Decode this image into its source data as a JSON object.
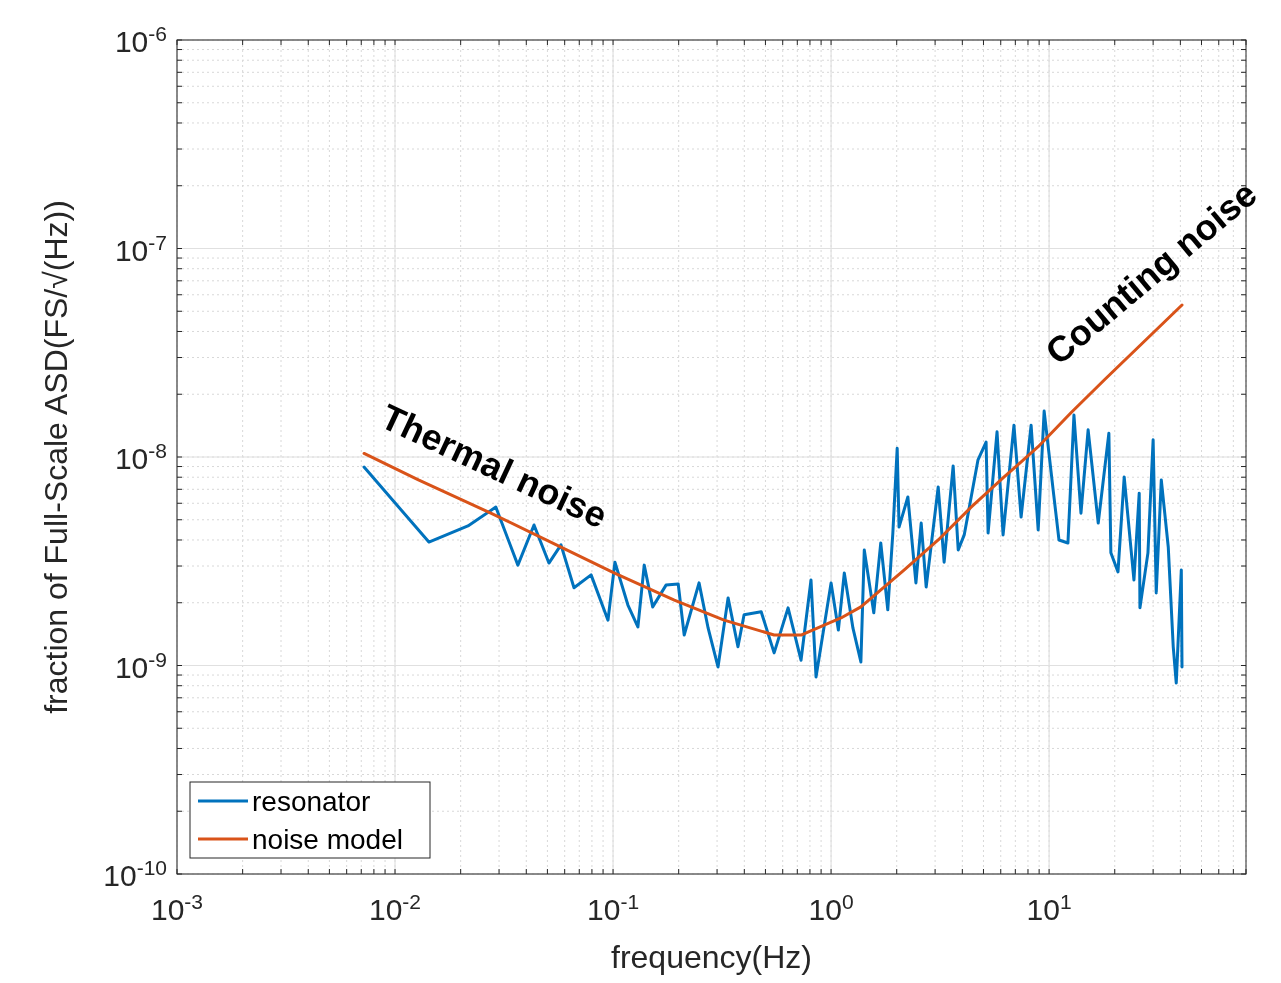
{
  "chart_data": {
    "type": "line",
    "xlabel": "frequency(Hz)",
    "ylabel": "fraction of Full-Scale ASD(FS/√(Hz))",
    "log": "xy",
    "grid": true,
    "legend": "bottom left",
    "line_style": "solid",
    "marker": "none",
    "xlim": [
      0.001,
      80
    ],
    "ylim": [
      1e-10,
      1e-06
    ],
    "xticks": [
      {
        "value": 0.001,
        "label": "10$^{-3}$"
      },
      {
        "value": 0.01,
        "label": "10$^{-2}$"
      },
      {
        "value": 0.1,
        "label": "10$^{-1}$"
      },
      {
        "value": 1,
        "label": "10$^{0}$"
      },
      {
        "value": 10,
        "label": "10$^{1}$"
      }
    ],
    "yticks": [
      {
        "value": 1e-10,
        "label": "10$^{-10}$"
      },
      {
        "value": 1e-09,
        "label": "10$^{-9}$"
      },
      {
        "value": 1e-08,
        "label": "10$^{-8}$"
      },
      {
        "value": 1e-07,
        "label": "10$^{-7}$"
      },
      {
        "value": 1e-06,
        "label": "10$^{-6}$"
      }
    ],
    "series": [
      {
        "name": "resonator",
        "color": "#0072bd",
        "x": [
          0.00721,
          0.0143,
          0.0216,
          0.029,
          0.0366,
          0.0434,
          0.0508,
          0.0577,
          0.0662,
          0.0793,
          0.0948,
          0.102,
          0.117,
          0.13,
          0.139,
          0.152,
          0.175,
          0.199,
          0.212,
          0.248,
          0.273,
          0.303,
          0.337,
          0.374,
          0.399,
          0.478,
          0.548,
          0.635,
          0.728,
          0.809,
          0.853,
          1.0,
          1.08,
          1.15,
          1.26,
          1.37,
          1.42,
          1.57,
          1.69,
          1.82,
          1.92,
          2.01,
          2.05,
          2.25,
          2.45,
          2.59,
          2.73,
          3.1,
          3.3,
          3.63,
          3.83,
          4.08,
          4.72,
          5.14,
          5.25,
          5.77,
          6.15,
          6.9,
          7.44,
          8.27,
          8.91,
          9.49,
          10.5,
          11.1,
          12.2,
          13.0,
          14.0,
          15.1,
          16.8,
          18.8,
          19.2,
          20.7,
          22.1,
          24.5,
          25.9,
          26.1,
          28.4,
          30.0,
          31.0,
          32.7,
          35.2,
          37.1,
          38.3,
          40.4,
          40.7
        ],
        "values": [
          8.95e-09,
          3.91e-09,
          4.67e-09,
          5.75e-09,
          3.03e-09,
          4.72e-09,
          3.1e-09,
          3.79e-09,
          2.36e-09,
          2.72e-09,
          1.65e-09,
          3.13e-09,
          1.95e-09,
          1.53e-09,
          3.03e-09,
          1.91e-09,
          2.43e-09,
          2.46e-09,
          1.4e-09,
          2.49e-09,
          1.51e-09,
          9.84e-10,
          2.11e-09,
          1.23e-09,
          1.75e-09,
          1.81e-09,
          1.15e-09,
          1.89e-09,
          1.06e-09,
          2.57e-09,
          8.81e-10,
          2.49e-09,
          1.48e-09,
          2.78e-09,
          1.51e-09,
          1.04e-09,
          3.58e-09,
          1.79e-09,
          3.87e-09,
          1.85e-09,
          4.32e-09,
          1.1e-08,
          4.61e-09,
          6.43e-09,
          2.49e-09,
          4.82e-09,
          2.38e-09,
          7.18e-09,
          3.13e-09,
          9.06e-09,
          3.58e-09,
          4.23e-09,
          9.69e-09,
          1.18e-08,
          4.32e-09,
          1.32e-08,
          4.23e-09,
          1.42e-08,
          5.15e-09,
          1.42e-08,
          4.47e-09,
          1.66e-08,
          6.58e-09,
          4e-09,
          3.87e-09,
          1.59e-08,
          5.38e-09,
          1.35e-08,
          4.82e-09,
          1.3e-08,
          3.47e-09,
          2.81e-09,
          8.02e-09,
          2.57e-09,
          6.71e-09,
          1.89e-09,
          3.47e-09,
          1.21e-08,
          2.23e-09,
          7.76e-09,
          3.7e-09,
          1.23e-09,
          8.24e-10,
          2.87e-09,
          9.84e-10
        ]
      },
      {
        "name": "noise model",
        "color": "#d95319",
        "x": [
          0.00721,
          0.0128,
          0.0275,
          0.0577,
          0.101,
          0.191,
          0.323,
          0.548,
          0.728,
          1.11,
          1.37,
          2.16,
          3.1,
          4.39,
          6.22,
          8.91,
          12.6,
          17.9,
          40.7
        ],
        "values": [
          1.04e-08,
          7.76e-09,
          5.38e-09,
          3.7e-09,
          2.78e-09,
          2.06e-09,
          1.65e-09,
          1.4e-09,
          1.4e-09,
          1.69e-09,
          1.91e-09,
          2.87e-09,
          4e-09,
          5.75e-09,
          8.02e-09,
          1.12e-08,
          1.63e-08,
          2.34e-08,
          5.36e-08
        ]
      }
    ],
    "annotations": [
      "Thermal noise",
      "Counting noise"
    ]
  }
}
